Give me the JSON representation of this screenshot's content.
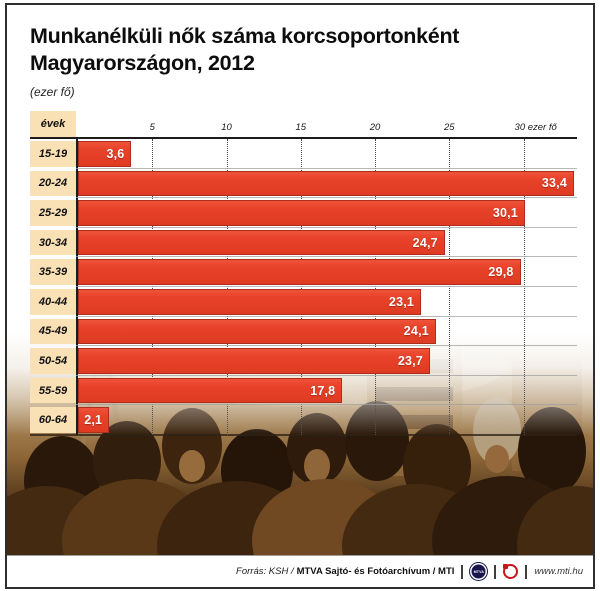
{
  "title": {
    "line1": "Munkanélküli nők száma korcsoportonként",
    "line2": "Magyarországon, 2012",
    "unit_note": "(ezer fő)"
  },
  "chart_data": {
    "type": "bar",
    "orientation": "horizontal",
    "title": "Munkanélküli nők száma korcsoportonként Magyarországon, 2012",
    "unit": "ezer fő",
    "y_header": "évek",
    "categories": [
      "15-19",
      "20-24",
      "25-29",
      "30-34",
      "35-39",
      "40-44",
      "45-49",
      "50-54",
      "55-59",
      "60-64"
    ],
    "values": [
      3.6,
      33.4,
      30.1,
      24.7,
      29.8,
      23.1,
      24.1,
      23.7,
      17.8,
      2.1
    ],
    "value_labels": [
      "3,6",
      "33,4",
      "30,1",
      "24,7",
      "29,8",
      "23,1",
      "24,1",
      "23,7",
      "17,8",
      "2,1"
    ],
    "xticks": [
      5,
      10,
      15,
      20,
      25,
      30
    ],
    "xtick_labels": [
      "5",
      "10",
      "15",
      "20",
      "25",
      "30 ezer fő"
    ],
    "xlim": [
      0,
      33.6
    ],
    "grid": "vertical-dotted",
    "legend": "none",
    "bar_color": "#e8432a",
    "category_box_color": "#f9e0b5"
  },
  "footer": {
    "source_prefix": "Forrás: KSH /",
    "source_bold": "MTVA Sajtó- és Fotóarchívum / MTI",
    "mtva_logo_text": "MTVA",
    "website": "www.mti.hu"
  }
}
